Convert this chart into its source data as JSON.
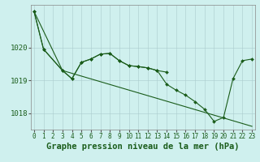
{
  "background_color": "#cff0ee",
  "grid_color": "#aacccc",
  "line_color": "#1a5c1a",
  "xlabel": "Graphe pression niveau de la mer (hPa)",
  "xlabel_fontsize": 7.5,
  "xtick_fontsize": 5.5,
  "ytick_fontsize": 6.5,
  "xlim": [
    -0.3,
    23.3
  ],
  "ylim": [
    1017.5,
    1021.3
  ],
  "yticks": [
    1018,
    1019,
    1020
  ],
  "xticks": [
    0,
    1,
    2,
    3,
    4,
    5,
    6,
    7,
    8,
    9,
    10,
    11,
    12,
    13,
    14,
    15,
    16,
    17,
    18,
    19,
    20,
    21,
    22,
    23
  ],
  "line1_x": [
    0,
    1,
    3,
    4,
    5,
    6,
    7,
    8,
    9,
    10,
    11,
    12,
    13,
    14,
    15,
    16,
    17,
    18,
    19,
    20,
    21,
    22,
    23
  ],
  "line1_y": [
    1021.1,
    1019.95,
    1019.3,
    1019.05,
    1019.55,
    1019.65,
    1019.8,
    1019.82,
    1019.6,
    1019.45,
    1019.42,
    1019.38,
    1019.3,
    1018.88,
    1018.7,
    1018.55,
    1018.35,
    1018.12,
    1017.75,
    1017.87,
    1019.05,
    1019.6,
    1019.65
  ],
  "line2_x": [
    0,
    3,
    23
  ],
  "line2_y": [
    1021.1,
    1019.3,
    1017.6
  ],
  "line3_x": [
    0,
    1,
    3,
    4,
    5,
    6,
    7,
    8,
    9,
    10,
    11,
    12,
    13,
    14
  ],
  "line3_y": [
    1021.1,
    1019.95,
    1019.3,
    1019.05,
    1019.55,
    1019.65,
    1019.8,
    1019.82,
    1019.6,
    1019.45,
    1019.42,
    1019.38,
    1019.3,
    1019.25
  ]
}
